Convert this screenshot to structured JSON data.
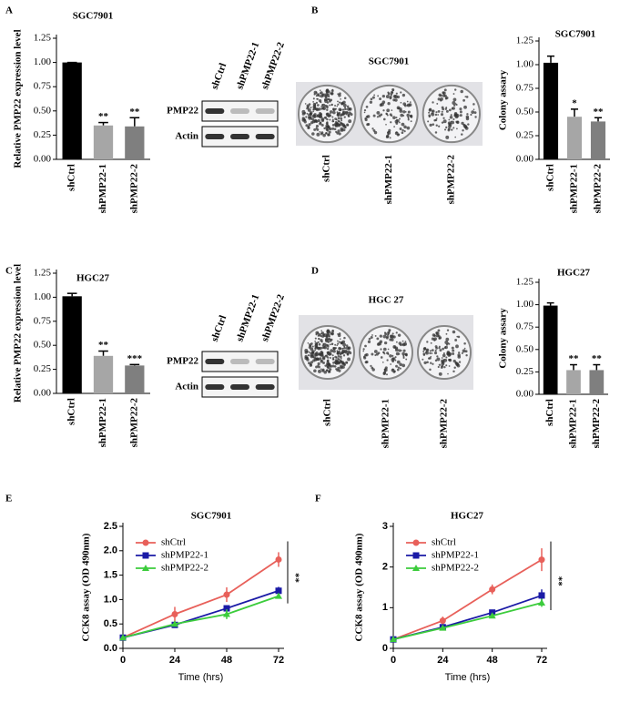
{
  "chart_data": [
    {
      "type": "bar",
      "panel": "A",
      "title": "SGC7901",
      "y_label": "Relative PMP22 expression level",
      "categories": [
        "shCtrl",
        "shPMP22-1",
        "shPMP22-2"
      ],
      "values": [
        1.0,
        0.35,
        0.34
      ],
      "errors": [
        0,
        0.03,
        0.09
      ],
      "annotations": [
        null,
        "**",
        "**"
      ],
      "colors": [
        "#000000",
        "#a6a6a6",
        "#7f7f7f"
      ],
      "ylim": [
        0,
        1.25
      ],
      "yticks": [
        {
          "value": 0,
          "label": "0.00"
        },
        0.25,
        {
          "value": 0.5,
          "label": "0.50"
        },
        0.75,
        {
          "value": 1,
          "label": "1.00"
        },
        1.25
      ]
    },
    {
      "type": "blot",
      "lanes": [
        "shCtrl",
        "shPMP22-1",
        "shPMP22-2"
      ],
      "rows": [
        "PMP22",
        "Actin"
      ]
    },
    {
      "type": "plates",
      "panel": "B",
      "title": "SGC7901",
      "categories": [
        "shCtrl",
        "shPMP22-1",
        "shPMP22-2"
      ]
    },
    {
      "type": "bar",
      "title": "SGC7901",
      "y_label": "Colony assary",
      "categories": [
        "shCtrl",
        "shPMP22-1",
        "shPMP22-2"
      ],
      "values": [
        1.02,
        0.45,
        0.4
      ],
      "errors": [
        0.07,
        0.08,
        0.04
      ],
      "annotations": [
        null,
        "*",
        "**"
      ],
      "colors": [
        "#000000",
        "#a6a6a6",
        "#7f7f7f"
      ],
      "ylim": [
        0,
        1.25
      ],
      "yticks": [
        {
          "value": 0,
          "label": "0.00"
        },
        0.25,
        {
          "value": 0.5,
          "label": "0.50"
        },
        0.75,
        {
          "value": 1,
          "label": "1.00"
        },
        1.25
      ]
    },
    {
      "type": "bar",
      "panel": "C",
      "title": "HGC27",
      "y_label": "Relative PMP22 expression level",
      "categories": [
        "shCtrl",
        "shPMP22-1",
        "shPMP22-2"
      ],
      "values": [
        1.01,
        0.39,
        0.29
      ],
      "errors": [
        0.03,
        0.05,
        0.01
      ],
      "annotations": [
        null,
        "**",
        "***"
      ],
      "colors": [
        "#000000",
        "#a6a6a6",
        "#7f7f7f"
      ],
      "ylim": [
        0,
        1.25
      ],
      "yticks": [
        {
          "value": 0,
          "label": "0.00"
        },
        0.25,
        {
          "value": 0.5,
          "label": "0.50"
        },
        0.75,
        {
          "value": 1,
          "label": "1.00"
        },
        1.25
      ]
    },
    {
      "type": "blot",
      "lanes": [
        "shCtrl",
        "shPMP22-1",
        "shPMP22-2"
      ],
      "rows": [
        "PMP22",
        "Actin"
      ]
    },
    {
      "type": "plates",
      "panel": "D",
      "title": "HGC 27",
      "categories": [
        "shCtrl",
        "shPMP22-1",
        "shPMP22-2"
      ]
    },
    {
      "type": "bar",
      "title": "HGC27",
      "y_label": "Colony assary",
      "categories": [
        "shCtrl",
        "shPMP22-1",
        "shPMP22-2"
      ],
      "values": [
        0.99,
        0.27,
        0.27
      ],
      "errors": [
        0.03,
        0.06,
        0.06
      ],
      "annotations": [
        null,
        "**",
        "**"
      ],
      "colors": [
        "#000000",
        "#a6a6a6",
        "#7f7f7f"
      ],
      "ylim": [
        0,
        1.25
      ],
      "yticks": [
        {
          "value": 0,
          "label": "0.00"
        },
        0.25,
        {
          "value": 0.5,
          "label": "0.50"
        },
        0.75,
        {
          "value": 1,
          "label": "1.00"
        },
        1.25
      ]
    },
    {
      "type": "line",
      "panel": "E",
      "title": "SGC7901",
      "x_label": "Time (hrs)",
      "y_label": "CCK8 assay (OD 490nm)",
      "x": [
        0,
        24,
        48,
        72
      ],
      "xlim": [
        0,
        72
      ],
      "xticks": [
        0,
        24,
        48,
        72
      ],
      "ylim": [
        0,
        2.5
      ],
      "yticks": [
        {
          "value": 0,
          "label": "0.0"
        },
        0.5,
        {
          "value": 1,
          "label": "1.0"
        },
        1.5,
        {
          "value": 2,
          "label": "2.0"
        },
        2.5
      ],
      "annotation": "**",
      "series": [
        {
          "name": "shCtrl",
          "color": "#e8605a",
          "marker": "circle",
          "values": [
            0.22,
            0.7,
            1.1,
            1.82
          ],
          "errors": [
            0.03,
            0.15,
            0.15,
            0.15
          ]
        },
        {
          "name": "shPMP22-1",
          "color": "#1a1aa6",
          "marker": "square",
          "values": [
            0.22,
            0.48,
            0.82,
            1.18
          ],
          "errors": [
            0.03,
            0.05,
            0.06,
            0.08
          ]
        },
        {
          "name": "shPMP22-2",
          "color": "#3ccc3c",
          "marker": "triangle",
          "values": [
            0.22,
            0.5,
            0.7,
            1.07
          ],
          "errors": [
            0.03,
            0.05,
            0.1,
            0.05
          ]
        }
      ]
    },
    {
      "type": "line",
      "panel": "F",
      "title": "HGC27",
      "x_label": "Time (hrs)",
      "y_label": "CCK8 assay (OD 490nm)",
      "x": [
        0,
        24,
        48,
        72
      ],
      "xlim": [
        0,
        72
      ],
      "xticks": [
        0,
        24,
        48,
        72
      ],
      "ylim": [
        0,
        3
      ],
      "yticks": [
        0,
        1,
        2,
        3
      ],
      "annotation": "**",
      "series": [
        {
          "name": "shCtrl",
          "color": "#e8605a",
          "marker": "circle",
          "values": [
            0.22,
            0.68,
            1.45,
            2.18
          ],
          "errors": [
            0.03,
            0.1,
            0.12,
            0.28
          ]
        },
        {
          "name": "shPMP22-1",
          "color": "#1a1aa6",
          "marker": "square",
          "values": [
            0.22,
            0.52,
            0.88,
            1.3
          ],
          "errors": [
            0.03,
            0.06,
            0.06,
            0.15
          ]
        },
        {
          "name": "shPMP22-2",
          "color": "#3ccc3c",
          "marker": "triangle",
          "values": [
            0.22,
            0.5,
            0.8,
            1.12
          ],
          "errors": [
            0.03,
            0.05,
            0.05,
            0.1
          ]
        }
      ]
    }
  ]
}
